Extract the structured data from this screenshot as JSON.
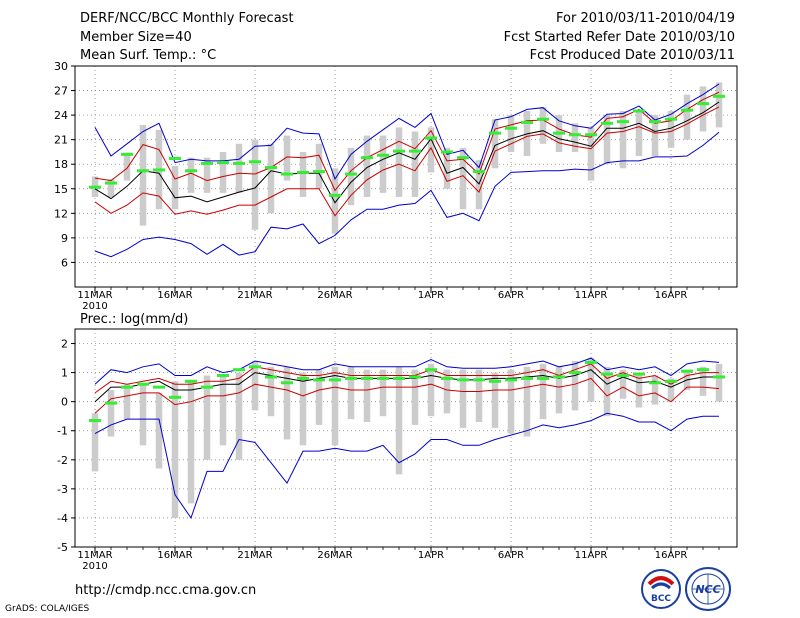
{
  "header": {
    "title": "DERF/NCC/BCC Monthly Forecast",
    "member_size": "Member Size=40",
    "variable": "Mean Surf. Temp.: °C",
    "period": "For 2010/03/11-2010/04/19",
    "started": "Fcst Started Refer Date 2010/03/10",
    "produced": "Fcst Produced Date 2010/03/11"
  },
  "footer": {
    "url": "http://cmdp.ncc.cma.gov.cn",
    "grads": "GrADS: COLA/IGES",
    "logo_bcc": "BCC",
    "logo_ncc": "NCC"
  },
  "colors": {
    "envelope": "#0000cc",
    "spread": "#cc0000",
    "mean": "#000000",
    "bar": "#cccccc",
    "climate": "#33ee33",
    "grid": "#888888"
  },
  "chart_data": [
    {
      "type": "line",
      "title": "",
      "ylabel": "Mean Surf. Temp.: °C",
      "ylim": [
        3,
        30
      ],
      "yticks": [
        6,
        9,
        12,
        15,
        18,
        21,
        24,
        27,
        30
      ],
      "x": [
        1,
        2,
        3,
        4,
        5,
        6,
        7,
        8,
        9,
        10,
        11,
        12,
        13,
        14,
        15,
        16,
        17,
        18,
        19,
        20,
        21,
        22,
        23,
        24,
        25,
        26,
        27,
        28,
        29,
        30,
        31,
        32,
        33,
        34,
        35,
        36,
        37,
        38,
        39,
        40
      ],
      "xticks": [
        {
          "x": 1,
          "label": "11MAR",
          "sub": "2010"
        },
        {
          "x": 6,
          "label": "16MAR"
        },
        {
          "x": 11,
          "label": "21MAR"
        },
        {
          "x": 16,
          "label": "26MAR"
        },
        {
          "x": 22,
          "label": "1APR"
        },
        {
          "x": 27,
          "label": "6APR"
        },
        {
          "x": 32,
          "label": "11APR"
        },
        {
          "x": 37,
          "label": "16APR"
        }
      ],
      "series": [
        {
          "name": "ensemble max",
          "color_key": "envelope",
          "values": [
            22.5,
            19,
            20.5,
            22,
            23,
            18.2,
            18.6,
            18.4,
            18.4,
            18.6,
            20.2,
            20.3,
            22.4,
            21.8,
            21.7,
            16.2,
            19.2,
            20.8,
            22.2,
            23.6,
            22.5,
            24.2,
            19.2,
            19.7,
            17.6,
            23.4,
            23.8,
            24.7,
            24.9,
            23.3,
            22.7,
            22.4,
            24.1,
            24.2,
            25.1,
            23.4,
            24.1,
            25.4,
            26.5,
            27.8
          ]
        },
        {
          "name": "mean + sd",
          "color_key": "spread",
          "values": [
            16.3,
            16,
            17.5,
            20.4,
            19.8,
            16.2,
            16.9,
            16,
            16.5,
            16.9,
            16.8,
            17.6,
            18.9,
            18.8,
            19.1,
            14.8,
            17.2,
            18.8,
            19.8,
            20.8,
            19.9,
            22.1,
            18.4,
            18.6,
            16.8,
            22.3,
            22.8,
            23.3,
            23.4,
            22.3,
            21.6,
            21.3,
            23.6,
            23.8,
            24.7,
            23,
            23.3,
            24.7,
            25.9,
            26.8
          ]
        },
        {
          "name": "ensemble mean",
          "color_key": "mean",
          "values": [
            15,
            13.8,
            15.3,
            17.2,
            16.9,
            13.9,
            14.1,
            13.4,
            14,
            14.6,
            15.1,
            17.2,
            16.8,
            16.9,
            16.9,
            13.3,
            15.8,
            17.6,
            18.6,
            19.4,
            18.6,
            21.1,
            16.9,
            17.6,
            15.6,
            20.3,
            21.1,
            21.7,
            22.1,
            21.1,
            20.7,
            20.2,
            22.4,
            22.4,
            23,
            22,
            22.4,
            23.3,
            24.3,
            25.6
          ]
        },
        {
          "name": "mean - sd",
          "color_key": "spread",
          "values": [
            13.4,
            12,
            13,
            14.5,
            14.1,
            11.9,
            12.3,
            11.9,
            12.4,
            13,
            13,
            14,
            15,
            15,
            15,
            11.7,
            14.2,
            16.1,
            17.3,
            18,
            17.2,
            20,
            15.9,
            16.6,
            14.6,
            19.6,
            20.5,
            21.4,
            21.7,
            20.6,
            20.2,
            19.9,
            21.8,
            22,
            22.6,
            21.8,
            22,
            22.9,
            24,
            25
          ]
        },
        {
          "name": "ensemble min",
          "color_key": "envelope",
          "values": [
            7.4,
            6.7,
            7.6,
            8.8,
            9.1,
            8.8,
            8.3,
            7,
            8.2,
            6.9,
            7.3,
            10.3,
            10.1,
            10.7,
            8.3,
            9.3,
            11.2,
            12.5,
            12.5,
            13,
            13.2,
            14.8,
            11.5,
            12,
            11.1,
            15.3,
            17,
            17.1,
            17.2,
            17.2,
            17.4,
            17.3,
            18.2,
            18.4,
            18.4,
            18.9,
            18.9,
            19,
            20.3,
            21.9
          ]
        }
      ],
      "bars": [
        [
          14,
          16.5
        ],
        [
          14,
          16.2
        ],
        [
          16,
          19.2
        ],
        [
          10.5,
          22.8
        ],
        [
          12.5,
          22.2
        ],
        [
          12.5,
          17.8
        ],
        [
          14.5,
          18.8
        ],
        [
          14.5,
          18.8
        ],
        [
          14.5,
          19.5
        ],
        [
          14.5,
          20.5
        ],
        [
          10,
          21
        ],
        [
          12,
          20.5
        ],
        [
          16,
          21.5
        ],
        [
          14,
          19.5
        ],
        [
          15,
          20.5
        ],
        [
          9.5,
          17.5
        ],
        [
          13,
          20
        ],
        [
          14,
          21.5
        ],
        [
          14.5,
          21.5
        ],
        [
          14,
          22.5
        ],
        [
          14,
          22
        ],
        [
          17,
          22.5
        ],
        [
          15,
          20
        ],
        [
          12.5,
          20
        ],
        [
          12.5,
          18.5
        ],
        [
          17.5,
          23.5
        ],
        [
          19.5,
          24
        ],
        [
          19,
          24.5
        ],
        [
          20.5,
          25
        ],
        [
          19.5,
          24
        ],
        [
          19.5,
          23
        ],
        [
          16,
          22.5
        ],
        [
          18,
          24
        ],
        [
          17.5,
          24.5
        ],
        [
          19,
          24.5
        ],
        [
          19,
          24
        ],
        [
          20,
          24.5
        ],
        [
          21,
          26.5
        ],
        [
          22,
          27.5
        ],
        [
          22.5,
          28
        ]
      ],
      "climate": [
        15.2,
        15.7,
        19.2,
        17.2,
        17.3,
        18.7,
        17.2,
        18.1,
        18.2,
        18.1,
        18.3,
        17.6,
        16.8,
        17,
        17.1,
        14.2,
        16.8,
        18.8,
        19.1,
        19.6,
        19.6,
        21.2,
        19.5,
        18.8,
        17.1,
        21.8,
        22.4,
        23.1,
        23.5,
        21.8,
        21.6,
        21.6,
        23,
        23.2,
        24.5,
        23.2,
        23.5,
        24.6,
        25.4,
        26.3
      ]
    },
    {
      "type": "line",
      "title": "",
      "ylabel": "Prec.: log(mm/d)",
      "ylim": [
        -5,
        2.5
      ],
      "yticks": [
        -5,
        -4,
        -3,
        -2,
        -1,
        0,
        1,
        2
      ],
      "x": [
        1,
        2,
        3,
        4,
        5,
        6,
        7,
        8,
        9,
        10,
        11,
        12,
        13,
        14,
        15,
        16,
        17,
        18,
        19,
        20,
        21,
        22,
        23,
        24,
        25,
        26,
        27,
        28,
        29,
        30,
        31,
        32,
        33,
        34,
        35,
        36,
        37,
        38,
        39,
        40
      ],
      "xticks": [
        {
          "x": 1,
          "label": "11MAR",
          "sub": "2010"
        },
        {
          "x": 6,
          "label": "16MAR"
        },
        {
          "x": 11,
          "label": "21MAR"
        },
        {
          "x": 16,
          "label": "26MAR"
        },
        {
          "x": 22,
          "label": "1APR"
        },
        {
          "x": 27,
          "label": "6APR"
        },
        {
          "x": 32,
          "label": "11APR"
        },
        {
          "x": 37,
          "label": "16APR"
        }
      ],
      "series": [
        {
          "name": "ensemble max",
          "color_key": "envelope",
          "values": [
            0.6,
            1.1,
            1,
            1.2,
            1.3,
            0.9,
            0.9,
            1.2,
            1,
            1.1,
            1.4,
            1.3,
            1.2,
            1.1,
            1.1,
            1.3,
            1.2,
            1.2,
            1.2,
            1.2,
            1.2,
            1.45,
            1.2,
            1.15,
            1.15,
            1.15,
            1.2,
            1.3,
            1.4,
            1.2,
            1.3,
            1.5,
            1.1,
            1.2,
            1.1,
            1.2,
            0.9,
            1.3,
            1.4,
            1.35
          ]
        },
        {
          "name": "mean + sd",
          "color_key": "spread",
          "values": [
            0.3,
            0.7,
            0.6,
            0.7,
            0.8,
            0.6,
            0.6,
            0.7,
            0.7,
            0.8,
            1.2,
            1.1,
            1,
            0.9,
            0.9,
            1,
            0.9,
            0.9,
            0.9,
            0.9,
            0.9,
            1.1,
            0.9,
            0.9,
            0.9,
            0.9,
            0.9,
            1,
            1.1,
            0.9,
            1.1,
            1.3,
            0.8,
            1,
            0.8,
            0.9,
            0.6,
            0.9,
            1,
            1
          ]
        },
        {
          "name": "ensemble mean",
          "color_key": "mean",
          "values": [
            0,
            0.5,
            0.5,
            0.6,
            0.7,
            0.4,
            0.4,
            0.5,
            0.6,
            0.6,
            1,
            0.9,
            0.8,
            0.7,
            0.8,
            0.9,
            0.8,
            0.8,
            0.8,
            0.8,
            0.8,
            0.9,
            0.8,
            0.75,
            0.75,
            0.8,
            0.8,
            0.85,
            0.9,
            0.8,
            0.9,
            1.1,
            0.6,
            0.85,
            0.65,
            0.7,
            0.5,
            0.75,
            0.85,
            0.85
          ]
        },
        {
          "name": "mean - sd",
          "color_key": "spread",
          "values": [
            -0.4,
            0.1,
            0.2,
            0.3,
            0.3,
            -0.1,
            0,
            0.2,
            0.2,
            0.3,
            0.6,
            0.5,
            0.4,
            0.2,
            0.4,
            0.5,
            0.4,
            0.4,
            0.5,
            0.5,
            0.5,
            0.6,
            0.4,
            0.35,
            0.35,
            0.4,
            0.4,
            0.5,
            0.6,
            0.5,
            0.6,
            0.8,
            0.2,
            0.5,
            0.2,
            0.3,
            0,
            0.5,
            0.5,
            0.45
          ]
        },
        {
          "name": "ensemble min",
          "color_key": "envelope",
          "values": [
            -1.1,
            -0.8,
            -0.6,
            -0.6,
            -0.6,
            -3.2,
            -4,
            -2.4,
            -2.4,
            -1.3,
            -1.4,
            -2.1,
            -2.8,
            -1.7,
            -1.7,
            -1.6,
            -1.7,
            -1.7,
            -1.5,
            -2.1,
            -1.8,
            -1.3,
            -1.3,
            -1.5,
            -1.5,
            -1.3,
            -1.15,
            -1,
            -0.8,
            -0.9,
            -0.8,
            -0.65,
            -0.4,
            -0.5,
            -0.7,
            -0.7,
            -1,
            -0.6,
            -0.5,
            -0.5
          ]
        }
      ],
      "bars": [
        [
          -2.4,
          -0.4
        ],
        [
          -1.2,
          0.4
        ],
        [
          -0.6,
          0.6
        ],
        [
          -1.5,
          0.6
        ],
        [
          -2.3,
          0.3
        ],
        [
          -4,
          0.7
        ],
        [
          -3.5,
          0.7
        ],
        [
          -2,
          0.9
        ],
        [
          -1.5,
          0.9
        ],
        [
          -2,
          1
        ],
        [
          -0.3,
          1.4
        ],
        [
          -0.5,
          1.2
        ],
        [
          -1.3,
          1.2
        ],
        [
          -1.5,
          1
        ],
        [
          -0.8,
          1.1
        ],
        [
          -1.5,
          1.2
        ],
        [
          -0.6,
          1.2
        ],
        [
          -0.7,
          1.1
        ],
        [
          -0.5,
          1.1
        ],
        [
          -2.5,
          1.2
        ],
        [
          -0.8,
          1.1
        ],
        [
          -0.5,
          1.3
        ],
        [
          -0.4,
          1.1
        ],
        [
          -0.9,
          1.1
        ],
        [
          -0.7,
          1.1
        ],
        [
          -0.9,
          1
        ],
        [
          -1.1,
          1.1
        ],
        [
          -1.2,
          1.2
        ],
        [
          -0.6,
          1.3
        ],
        [
          -0.4,
          1.2
        ],
        [
          -0.3,
          1.4
        ],
        [
          0,
          1.5
        ],
        [
          -0.5,
          1.2
        ],
        [
          0.1,
          1.1
        ],
        [
          -0.2,
          1
        ],
        [
          -0.1,
          0.9
        ],
        [
          0,
          0.8
        ],
        [
          0.4,
          1.1
        ],
        [
          0.2,
          1.2
        ],
        [
          0,
          1.3
        ]
      ],
      "climate": [
        -0.65,
        -0.05,
        0.5,
        0.6,
        0.5,
        0.15,
        0.7,
        0.5,
        0.9,
        1.1,
        1.2,
        0.85,
        0.65,
        0.8,
        0.75,
        0.75,
        0.8,
        0.8,
        0.8,
        0.8,
        0.85,
        1.1,
        0.8,
        0.75,
        0.75,
        0.7,
        0.75,
        0.8,
        0.8,
        0.85,
        1,
        1.35,
        0.95,
        0.9,
        0.95,
        0.65,
        0.7,
        1.05,
        1.1,
        0.85
      ]
    }
  ]
}
